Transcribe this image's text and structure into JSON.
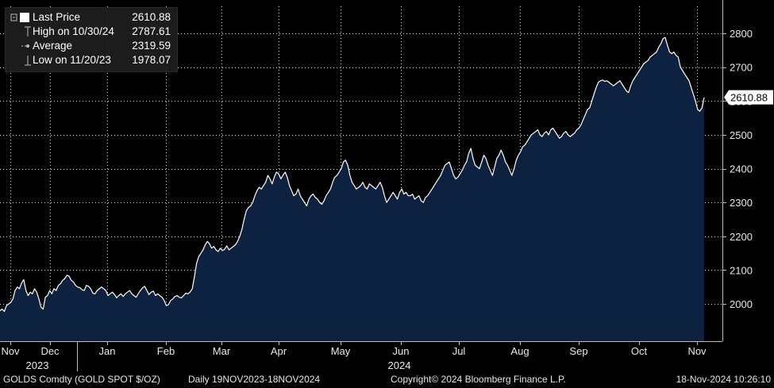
{
  "legend": {
    "last_price_label": "Last Price",
    "last_price_value": "2610.88",
    "high_label": "High on 10/30/24",
    "high_value": "2787.61",
    "average_label": "Average",
    "average_value": "2319.59",
    "low_label": "Low on 11/20/23",
    "low_value": "1978.07"
  },
  "footer": {
    "ticker": "GOLDS Comdty (GOLD SPOT $/OZ)",
    "range": "Daily 19NOV2023-18NOV2024",
    "copyright": "Copyright© 2024 Bloomberg Finance L.P.",
    "timestamp": "18-Nov-2024 10:26:10"
  },
  "colors": {
    "area_fill": "#0c2240",
    "line": "#ffffff",
    "background": "#000000",
    "grid": "#ffffff"
  },
  "chart_data": {
    "type": "area",
    "title": "",
    "xlabel": "",
    "ylabel": "",
    "ylim": [
      1890,
      2880
    ],
    "yticks": [
      2000,
      2100,
      2200,
      2300,
      2400,
      2500,
      2600,
      2700,
      2800
    ],
    "grid": true,
    "last_value_label": "2610.88",
    "month_ticks": [
      "Nov",
      "Dec",
      "Jan",
      "Feb",
      "Mar",
      "Apr",
      "May",
      "Jun",
      "Jul",
      "Aug",
      "Sep",
      "Oct",
      "Nov"
    ],
    "year_ticks": [
      "2023",
      "2024"
    ],
    "series": [
      {
        "values": [
          1980,
          1985,
          1978,
          1995,
          2000,
          2005,
          2015,
          2040,
          2050,
          2045,
          2062,
          2072,
          2040,
          2025,
          2035,
          2030,
          2045,
          2035,
          2015,
          1990,
          1985,
          2020,
          2025,
          2040,
          2030,
          2045,
          2040,
          2055,
          2060,
          2070,
          2075,
          2085,
          2082,
          2070,
          2065,
          2055,
          2050,
          2048,
          2042,
          2040,
          2055,
          2052,
          2045,
          2032,
          2030,
          2040,
          2045,
          2050,
          2045,
          2040,
          2025,
          2030,
          2035,
          2028,
          2018,
          2025,
          2030,
          2022,
          2030,
          2035,
          2040,
          2030,
          2025,
          2020,
          2030,
          2040,
          2048,
          2052,
          2040,
          2028,
          2035,
          2038,
          2025,
          2030,
          2025,
          2020,
          2010,
          1995,
          1998,
          2010,
          2015,
          2022,
          2025,
          2020,
          2018,
          2025,
          2032,
          2030,
          2035,
          2045,
          2080,
          2120,
          2140,
          2150,
          2160,
          2175,
          2185,
          2178,
          2165,
          2170,
          2160,
          2155,
          2165,
          2158,
          2162,
          2172,
          2160,
          2165,
          2170,
          2175,
          2185,
          2200,
          2220,
          2250,
          2275,
          2285,
          2290,
          2300,
          2320,
          2335,
          2345,
          2340,
          2350,
          2360,
          2380,
          2370,
          2355,
          2375,
          2390,
          2385,
          2370,
          2380,
          2390,
          2375,
          2350,
          2335,
          2320,
          2325,
          2340,
          2320,
          2310,
          2300,
          2290,
          2310,
          2320,
          2325,
          2315,
          2310,
          2300,
          2295,
          2305,
          2320,
          2330,
          2340,
          2360,
          2375,
          2380,
          2390,
          2400,
          2420,
          2425,
          2410,
          2380,
          2360,
          2350,
          2340,
          2345,
          2350,
          2360,
          2345,
          2340,
          2355,
          2350,
          2345,
          2340,
          2350,
          2360,
          2345,
          2320,
          2300,
          2310,
          2320,
          2330,
          2320,
          2310,
          2330,
          2340,
          2325,
          2330,
          2320,
          2320,
          2325,
          2310,
          2315,
          2320,
          2305,
          2300,
          2315,
          2320,
          2330,
          2340,
          2350,
          2360,
          2370,
          2380,
          2395,
          2410,
          2415,
          2420,
          2400,
          2380,
          2370,
          2375,
          2385,
          2395,
          2410,
          2420,
          2445,
          2460,
          2430,
          2410,
          2405,
          2400,
          2420,
          2440,
          2430,
          2410,
          2395,
          2380,
          2405,
          2430,
          2440,
          2455,
          2440,
          2420,
          2410,
          2395,
          2380,
          2400,
          2425,
          2440,
          2450,
          2465,
          2470,
          2480,
          2490,
          2500,
          2505,
          2510,
          2515,
          2500,
          2495,
          2505,
          2510,
          2500,
          2515,
          2520,
          2510,
          2500,
          2490,
          2495,
          2505,
          2510,
          2500,
          2495,
          2500,
          2505,
          2515,
          2520,
          2530,
          2545,
          2560,
          2575,
          2580,
          2600,
          2620,
          2640,
          2655,
          2660,
          2662,
          2658,
          2660,
          2655,
          2650,
          2645,
          2650,
          2655,
          2660,
          2650,
          2640,
          2630,
          2625,
          2645,
          2660,
          2670,
          2680,
          2690,
          2700,
          2710,
          2715,
          2720,
          2730,
          2735,
          2740,
          2745,
          2760,
          2770,
          2785,
          2788,
          2765,
          2745,
          2740,
          2745,
          2735,
          2730,
          2700,
          2690,
          2680,
          2670,
          2660,
          2640,
          2620,
          2600,
          2575,
          2570,
          2580,
          2611
        ]
      }
    ]
  }
}
